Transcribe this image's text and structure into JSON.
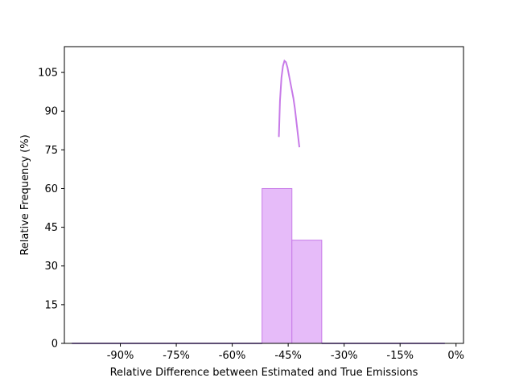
{
  "chart_data": {
    "type": "bar",
    "title": "",
    "xlabel": "Relative Difference between Estimated and True Emissions",
    "ylabel": "Relative Frequency (%)",
    "xlim": [
      -105,
      2
    ],
    "ylim": [
      0,
      115
    ],
    "x_ticks": [
      -90,
      -75,
      -60,
      -45,
      -30,
      -15,
      0
    ],
    "x_tick_labels": [
      "-90%",
      "-75%",
      "-60%",
      "-45%",
      "-30%",
      "-15%",
      "0%"
    ],
    "y_ticks": [
      0,
      15,
      30,
      45,
      60,
      75,
      90,
      105
    ],
    "y_tick_labels": [
      "0",
      "15",
      "30",
      "45",
      "60",
      "75",
      "90",
      "105"
    ],
    "grid": false,
    "legend": "none",
    "colors": {
      "fill": "#e6bbf9",
      "edge": "#c77ae8",
      "baseline": "#7b3fd1",
      "curve": "#c77ae8"
    },
    "histogram": {
      "bins": [
        {
          "x0": -103,
          "x1": -52,
          "value": 0
        },
        {
          "x0": -52,
          "x1": -44,
          "value": 60
        },
        {
          "x0": -44,
          "x1": -36,
          "value": 40
        },
        {
          "x0": -36,
          "x1": -3,
          "value": 0
        }
      ]
    },
    "curve": {
      "x": [
        -47.5,
        -47.2,
        -46.8,
        -46.4,
        -46.0,
        -45.6,
        -45.2,
        -44.8,
        -44.4,
        -44.0,
        -43.6,
        -43.2,
        -42.8,
        -42.4,
        -42.0
      ],
      "y": [
        80,
        94,
        103,
        107.5,
        109.5,
        109,
        107,
        104,
        101,
        98,
        95,
        91,
        86,
        81,
        76
      ]
    }
  }
}
